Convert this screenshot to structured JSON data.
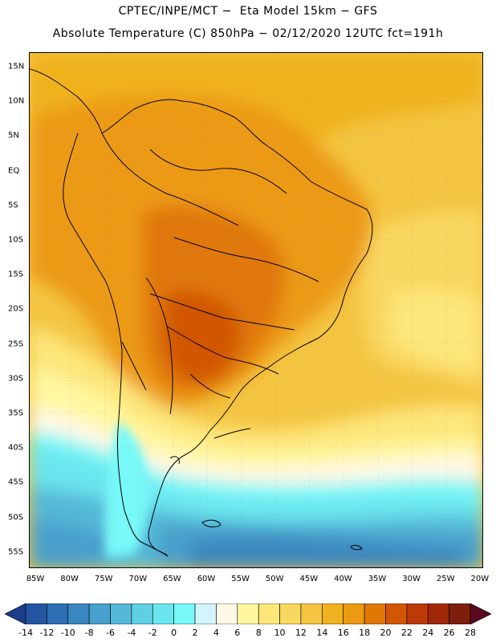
{
  "header": {
    "line1": "CPTEC/INPE/MCT −  Eta Model 15km − GFS",
    "line2": "Absolute Temperature (C) 850hPa − 02/12/2020 12UTC fct=191h"
  },
  "map": {
    "lat_labels": [
      "15N",
      "10N",
      "5N",
      "EQ",
      "5S",
      "10S",
      "15S",
      "20S",
      "25S",
      "30S",
      "35S",
      "40S",
      "45S",
      "50S",
      "55S"
    ],
    "lon_labels": [
      "85W",
      "80W",
      "75W",
      "70W",
      "65W",
      "60W",
      "55W",
      "50W",
      "45W",
      "40W",
      "35W",
      "30W",
      "25W",
      "20W"
    ]
  },
  "colorbar": {
    "labels": [
      "-14",
      "-12",
      "-10",
      "-8",
      "-6",
      "-4",
      "-2",
      "0",
      "2",
      "4",
      "6",
      "8",
      "10",
      "12",
      "14",
      "16",
      "18",
      "20",
      "22",
      "24",
      "26",
      "28"
    ],
    "colors": [
      "#1c3c8c",
      "#2356a0",
      "#2e6eb4",
      "#3a86c0",
      "#48a0cc",
      "#55b8d8",
      "#5fd0e4",
      "#6ae6ee",
      "#78f8f8",
      "#d2f4fa",
      "#fff8e6",
      "#fff7a0",
      "#fde67a",
      "#f9d860",
      "#f4c442",
      "#f0b21e",
      "#ec9a12",
      "#e07808",
      "#d25606",
      "#bc3a06",
      "#a02808",
      "#7e1e0c",
      "#5a0a1e"
    ]
  }
}
